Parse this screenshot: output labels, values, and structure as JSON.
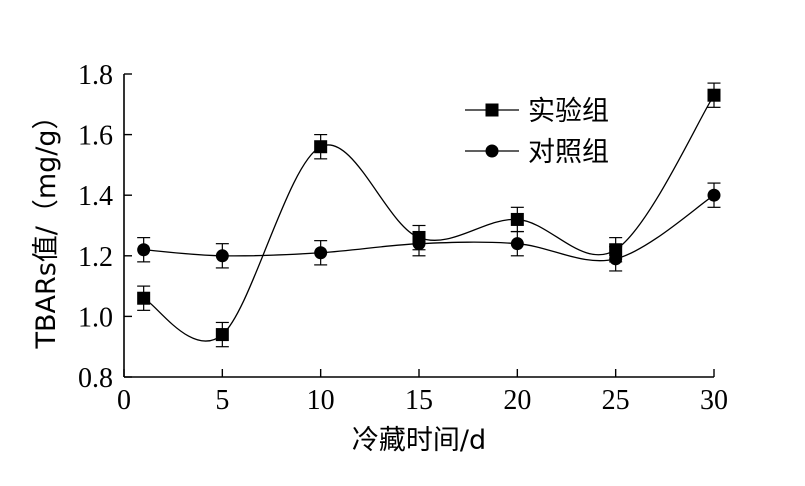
{
  "chart_data": {
    "type": "line",
    "xlabel": "冷藏时间/d",
    "ylabel": "TBARs值/（mg/g）",
    "xlim": [
      0,
      30
    ],
    "ylim": [
      0.8,
      1.8
    ],
    "xticks": [
      0,
      5,
      10,
      15,
      20,
      25,
      30
    ],
    "yticks": [
      0.8,
      1.0,
      1.2,
      1.4,
      1.6,
      1.8
    ],
    "xtick_labels": [
      "0",
      "5",
      "10",
      "15",
      "20",
      "25",
      "30"
    ],
    "ytick_labels": [
      "0.8",
      "1.0",
      "1.2",
      "1.4",
      "1.6",
      "1.8"
    ],
    "grid": false,
    "legend_position": "top-right",
    "series": [
      {
        "name": "实验组",
        "marker": "square",
        "x": [
          1,
          5,
          10,
          15,
          20,
          25,
          30
        ],
        "values": [
          1.06,
          0.94,
          1.56,
          1.26,
          1.32,
          1.22,
          1.73
        ],
        "errors": [
          0.04,
          0.04,
          0.04,
          0.04,
          0.04,
          0.04,
          0.04
        ]
      },
      {
        "name": "对照组",
        "marker": "circle",
        "x": [
          1,
          5,
          10,
          15,
          20,
          25,
          30
        ],
        "values": [
          1.22,
          1.2,
          1.21,
          1.24,
          1.24,
          1.19,
          1.4
        ],
        "errors": [
          0.04,
          0.04,
          0.04,
          0.04,
          0.04,
          0.04,
          0.04
        ]
      }
    ]
  }
}
